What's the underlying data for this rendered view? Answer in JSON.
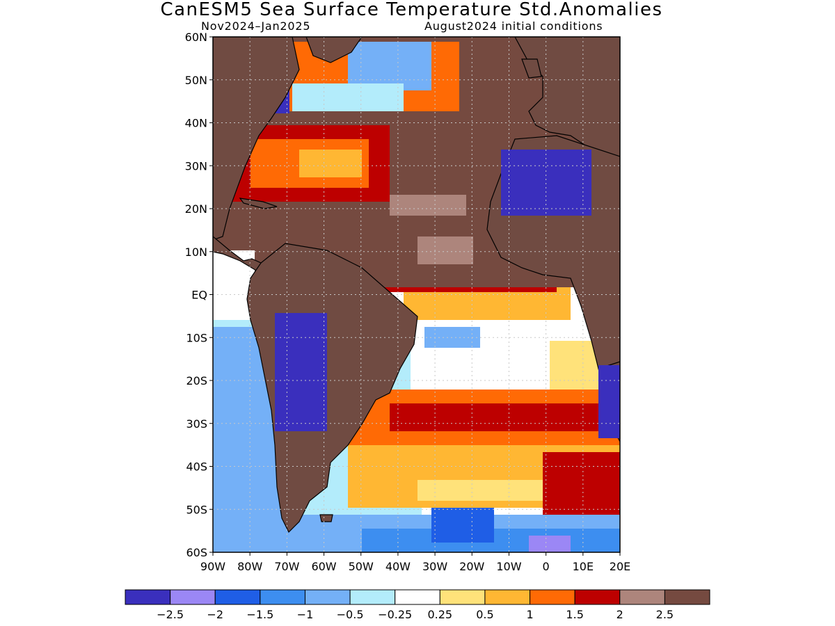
{
  "title": "CanESM5 Sea Surface Temperature Std.Anomalies",
  "subtitle_left": "Nov2024–Jan2025",
  "subtitle_right": "August2024 initial conditions",
  "map": {
    "lon_range": [
      -90,
      20
    ],
    "lat_range": [
      -60,
      60
    ],
    "land_color": "#704b42",
    "lat_ticks": [
      {
        "value": 60,
        "label": "60N"
      },
      {
        "value": 50,
        "label": "50N"
      },
      {
        "value": 40,
        "label": "40N"
      },
      {
        "value": 30,
        "label": "30N"
      },
      {
        "value": 20,
        "label": "20N"
      },
      {
        "value": 10,
        "label": "10N"
      },
      {
        "value": 0,
        "label": "EQ"
      },
      {
        "value": -10,
        "label": "10S"
      },
      {
        "value": -20,
        "label": "20S"
      },
      {
        "value": -30,
        "label": "30S"
      },
      {
        "value": -40,
        "label": "40S"
      },
      {
        "value": -50,
        "label": "50S"
      },
      {
        "value": -60,
        "label": "60S"
      }
    ],
    "lon_ticks": [
      {
        "value": -90,
        "label": "90W"
      },
      {
        "value": -80,
        "label": "80W"
      },
      {
        "value": -70,
        "label": "70W"
      },
      {
        "value": -60,
        "label": "60W"
      },
      {
        "value": -50,
        "label": "50W"
      },
      {
        "value": -40,
        "label": "40W"
      },
      {
        "value": -30,
        "label": "30W"
      },
      {
        "value": -20,
        "label": "20W"
      },
      {
        "value": -10,
        "label": "10W"
      },
      {
        "value": 0,
        "label": "0"
      },
      {
        "value": 10,
        "label": "10E"
      },
      {
        "value": 20,
        "label": "20E"
      }
    ]
  },
  "colorbar": {
    "colors": [
      "#3a2fbd",
      "#9b87f5",
      "#1f5ee6",
      "#3d8ef0",
      "#74b0f7",
      "#b3ecfb",
      "#ffffff",
      "#ffe27a",
      "#ffb733",
      "#ff6a05",
      "#bd0000",
      "#ad857c",
      "#754a40"
    ],
    "labels": [
      "−2.5",
      "−2",
      "−1.5",
      "−1",
      "−0.5",
      "−0.25",
      "0.25",
      "0.5",
      "1",
      "1.5",
      "2",
      "2.5"
    ]
  }
}
